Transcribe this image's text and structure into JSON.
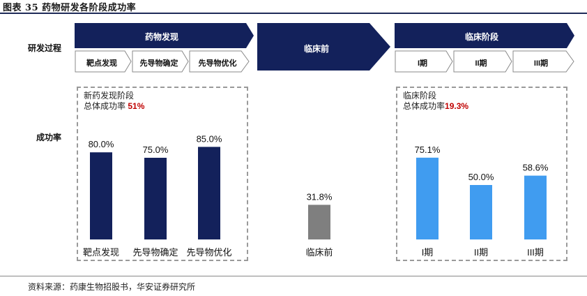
{
  "header": {
    "title": "图表 35  药物研发各阶段成功率"
  },
  "row_labels": {
    "process": "研发过程",
    "rate": "成功率"
  },
  "phases": {
    "discovery": {
      "title": "药物发现",
      "steps": [
        "靶点发现",
        "先导物确定",
        "先导物优化"
      ]
    },
    "preclinical": {
      "title": "临床前"
    },
    "clinical": {
      "title": "临床阶段",
      "steps": [
        "I期",
        "II期",
        "III期"
      ]
    }
  },
  "boxes": {
    "discovery": {
      "line1": "新药发现阶段",
      "line2_prefix": "总体成功率 ",
      "line2_value": "51%"
    },
    "clinical": {
      "line1": "临床阶段",
      "line2_prefix": "总体成功率",
      "line2_value": "19.3%"
    }
  },
  "colors": {
    "navy": "#13215b",
    "gray": "#7f7f7f",
    "blue": "#409cf0",
    "highlight": "#c00000"
  },
  "chart_data": {
    "type": "bar",
    "categories": [
      "靶点发现",
      "先导物确定",
      "先导物优化",
      "临床前",
      "I期",
      "II期",
      "III期"
    ],
    "values": [
      80.0,
      75.0,
      85.0,
      31.8,
      75.1,
      50.0,
      58.6
    ],
    "value_labels": [
      "80.0%",
      "75.0%",
      "85.0%",
      "31.8%",
      "75.1%",
      "50.0%",
      "58.6%"
    ],
    "groups": [
      "药物发现",
      "药物发现",
      "药物发现",
      "临床前",
      "临床阶段",
      "临床阶段",
      "临床阶段"
    ],
    "ylim": [
      0,
      100
    ],
    "title": "",
    "xlabel": "",
    "ylabel": "成功率"
  },
  "source": "资料来源：药康生物招股书，华安证券研究所"
}
